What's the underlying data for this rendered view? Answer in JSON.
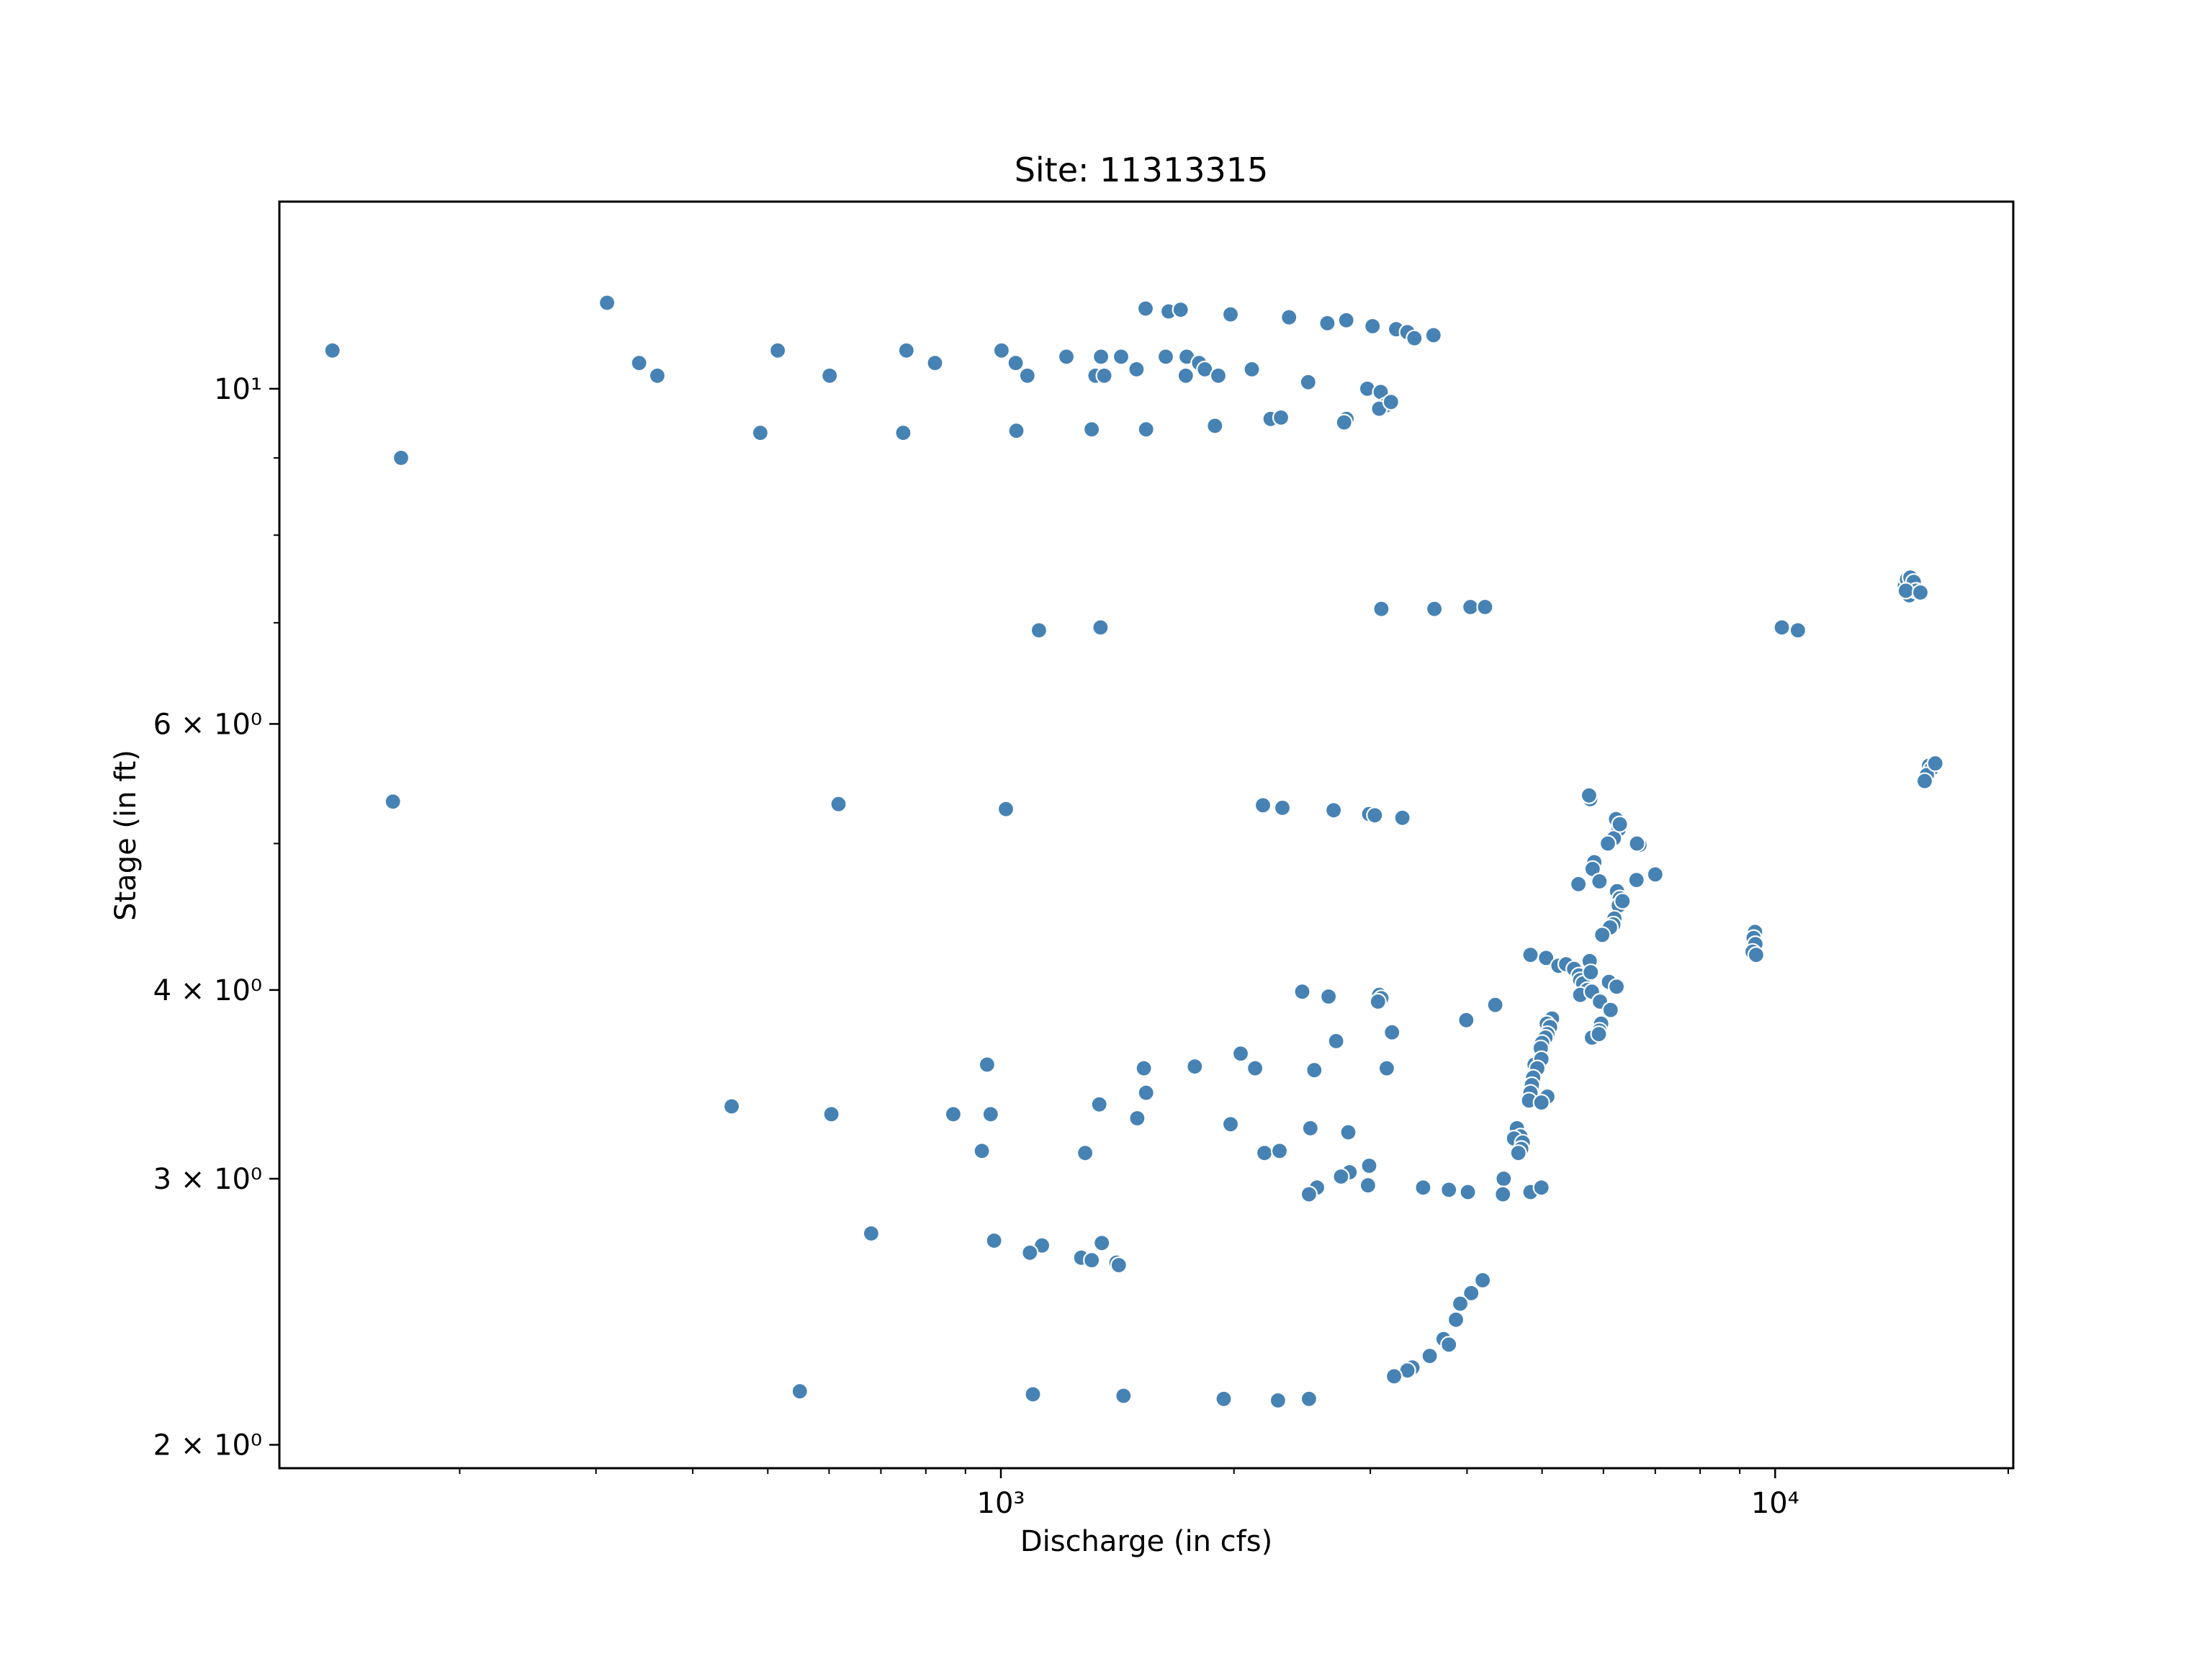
{
  "chart_data": {
    "type": "scatter",
    "title": "Site: 11313315",
    "xlabel": "Discharge (in cfs)",
    "ylabel": "Stage (in ft)",
    "xscale": "log",
    "yscale": "log",
    "xlim": [
      117,
      20300
    ],
    "ylim": [
      1.93,
      13.3
    ],
    "grid": false,
    "legend": "none",
    "colors": {
      "marker": "#4682b4",
      "marker_edge": "#ffffff",
      "axes": "#000000"
    },
    "x_ticks": [
      {
        "value": 1000,
        "label": "10³"
      },
      {
        "value": 10000,
        "label": "10⁴"
      }
    ],
    "y_ticks": [
      {
        "value": 2,
        "label": "2 × 10⁰"
      },
      {
        "value": 3,
        "label": "3 × 10⁰"
      },
      {
        "value": 4,
        "label": "4 × 10⁰"
      },
      {
        "value": 6,
        "label": "6 × 10⁰"
      },
      {
        "value": 10,
        "label": "10¹"
      }
    ],
    "points": [
      [
        137,
        10.6
      ],
      [
        310,
        11.4
      ],
      [
        341,
        10.4
      ],
      [
        360,
        10.2
      ],
      [
        515,
        10.6
      ],
      [
        601,
        10.2
      ],
      [
        755,
        10.6
      ],
      [
        822,
        10.4
      ],
      [
        1002,
        10.6
      ],
      [
        1045,
        10.4
      ],
      [
        1082,
        10.2
      ],
      [
        1215,
        10.5
      ],
      [
        1325,
        10.2
      ],
      [
        1347,
        10.5
      ],
      [
        1360,
        10.2
      ],
      [
        1430,
        10.5
      ],
      [
        1497,
        10.3
      ],
      [
        1633,
        10.5
      ],
      [
        1733,
        10.2
      ],
      [
        1738,
        10.5
      ],
      [
        1803,
        10.4
      ],
      [
        1834,
        10.3
      ],
      [
        1909,
        10.2
      ],
      [
        2109,
        10.3
      ],
      [
        2494,
        10.1
      ],
      [
        2973,
        10.0
      ],
      [
        3094,
        9.95
      ],
      [
        3141,
        9.75
      ],
      [
        3080,
        9.7
      ],
      [
        2795,
        9.55
      ],
      [
        2775,
        9.5
      ],
      [
        3190,
        9.8
      ],
      [
        1538,
        11.3
      ],
      [
        1647,
        11.25
      ],
      [
        1707,
        11.28
      ],
      [
        1980,
        11.2
      ],
      [
        2356,
        11.15
      ],
      [
        2640,
        11.05
      ],
      [
        2793,
        11.1
      ],
      [
        3020,
        11.0
      ],
      [
        3240,
        10.95
      ],
      [
        3350,
        10.9
      ],
      [
        3420,
        10.8
      ],
      [
        3620,
        10.85
      ],
      [
        168,
        9.0
      ],
      [
        489,
        9.35
      ],
      [
        748,
        9.35
      ],
      [
        1047,
        9.38
      ],
      [
        1310,
        9.4
      ],
      [
        1540,
        9.4
      ],
      [
        1890,
        9.45
      ],
      [
        2230,
        9.55
      ],
      [
        2300,
        9.57
      ],
      [
        1120,
        6.92
      ],
      [
        1345,
        6.95
      ],
      [
        3100,
        7.15
      ],
      [
        3630,
        7.15
      ],
      [
        4040,
        7.17
      ],
      [
        4220,
        7.17
      ],
      [
        10200,
        6.95
      ],
      [
        10700,
        6.92
      ],
      [
        14700,
        7.4
      ],
      [
        14800,
        7.48
      ],
      [
        14950,
        7.5
      ],
      [
        15100,
        7.45
      ],
      [
        14900,
        7.3
      ],
      [
        15200,
        7.35
      ],
      [
        14750,
        7.35
      ],
      [
        15400,
        7.33
      ],
      [
        164,
        5.33
      ],
      [
        617,
        5.31
      ],
      [
        1015,
        5.27
      ],
      [
        2180,
        5.3
      ],
      [
        2310,
        5.28
      ],
      [
        2690,
        5.26
      ],
      [
        2990,
        5.23
      ],
      [
        3040,
        5.22
      ],
      [
        3300,
        5.2
      ],
      [
        5770,
        5.35
      ],
      [
        5750,
        5.38
      ],
      [
        6230,
        5.19
      ],
      [
        6280,
        5.11
      ],
      [
        6190,
        5.04
      ],
      [
        6300,
        5.15
      ],
      [
        6080,
        5.0
      ],
      [
        6680,
        4.99
      ],
      [
        6630,
        5.0
      ],
      [
        5840,
        4.86
      ],
      [
        5810,
        4.81
      ],
      [
        5930,
        4.72
      ],
      [
        5570,
        4.7
      ],
      [
        7000,
        4.77
      ],
      [
        6620,
        4.73
      ],
      [
        6250,
        4.65
      ],
      [
        6300,
        4.6
      ],
      [
        6280,
        4.55
      ],
      [
        6350,
        4.58
      ],
      [
        6200,
        4.46
      ],
      [
        6180,
        4.42
      ],
      [
        6120,
        4.4
      ],
      [
        5980,
        4.35
      ],
      [
        15800,
        5.63
      ],
      [
        15900,
        5.6
      ],
      [
        15700,
        5.55
      ],
      [
        16100,
        5.65
      ],
      [
        15600,
        5.5
      ],
      [
        9390,
        4.31
      ],
      [
        9420,
        4.37
      ],
      [
        9380,
        4.33
      ],
      [
        9430,
        4.29
      ],
      [
        9350,
        4.24
      ],
      [
        9450,
        4.22
      ],
      [
        4830,
        4.22
      ],
      [
        5060,
        4.2
      ],
      [
        5250,
        4.15
      ],
      [
        5370,
        4.16
      ],
      [
        5500,
        4.13
      ],
      [
        5580,
        4.09
      ],
      [
        5600,
        4.06
      ],
      [
        5650,
        4.04
      ],
      [
        5760,
        4.18
      ],
      [
        5780,
        4.11
      ],
      [
        5720,
        4.0
      ],
      [
        5600,
        3.97
      ],
      [
        5800,
        3.99
      ],
      [
        6100,
        4.05
      ],
      [
        6240,
        4.02
      ],
      [
        5940,
        3.93
      ],
      [
        6130,
        3.88
      ],
      [
        5960,
        3.8
      ],
      [
        5930,
        3.76
      ],
      [
        5800,
        3.72
      ],
      [
        5920,
        3.74
      ],
      [
        2450,
        3.99
      ],
      [
        2650,
        3.96
      ],
      [
        3080,
        3.97
      ],
      [
        3100,
        3.95
      ],
      [
        3070,
        3.93
      ],
      [
        4350,
        3.91
      ],
      [
        3990,
        3.82
      ],
      [
        5150,
        3.83
      ],
      [
        5070,
        3.8
      ],
      [
        5120,
        3.78
      ],
      [
        5080,
        3.74
      ],
      [
        5050,
        3.72
      ],
      [
        5000,
        3.69
      ],
      [
        4980,
        3.66
      ],
      [
        3200,
        3.75
      ],
      [
        2710,
        3.7
      ],
      [
        2040,
        3.63
      ],
      [
        1780,
        3.56
      ],
      [
        2130,
        3.55
      ],
      [
        960,
        3.57
      ],
      [
        1530,
        3.55
      ],
      [
        2540,
        3.54
      ],
      [
        3150,
        3.55
      ],
      [
        4890,
        3.57
      ],
      [
        4990,
        3.6
      ],
      [
        4930,
        3.55
      ],
      [
        4870,
        3.5
      ],
      [
        4850,
        3.46
      ],
      [
        4830,
        3.42
      ],
      [
        4810,
        3.38
      ],
      [
        5080,
        3.4
      ],
      [
        4990,
        3.37
      ],
      [
        1540,
        3.42
      ],
      [
        1340,
        3.36
      ],
      [
        449,
        3.35
      ],
      [
        604,
        3.31
      ],
      [
        868,
        3.31
      ],
      [
        970,
        3.31
      ],
      [
        1500,
        3.29
      ],
      [
        1980,
        3.26
      ],
      [
        2510,
        3.24
      ],
      [
        2810,
        3.22
      ],
      [
        4620,
        3.22
      ],
      [
        4640,
        3.24
      ],
      [
        4690,
        3.2
      ],
      [
        4600,
        3.19
      ],
      [
        4720,
        3.17
      ],
      [
        4700,
        3.14
      ],
      [
        4660,
        3.12
      ],
      [
        945,
        3.13
      ],
      [
        1285,
        3.12
      ],
      [
        2190,
        3.12
      ],
      [
        2290,
        3.13
      ],
      [
        2990,
        3.06
      ],
      [
        2820,
        3.03
      ],
      [
        2750,
        3.01
      ],
      [
        2980,
        2.97
      ],
      [
        4460,
        3.0
      ],
      [
        2560,
        2.96
      ],
      [
        2500,
        2.93
      ],
      [
        3510,
        2.96
      ],
      [
        3790,
        2.95
      ],
      [
        4010,
        2.94
      ],
      [
        4450,
        2.93
      ],
      [
        4830,
        2.94
      ],
      [
        4990,
        2.96
      ],
      [
        680,
        2.76
      ],
      [
        980,
        2.73
      ],
      [
        1130,
        2.71
      ],
      [
        1090,
        2.68
      ],
      [
        1270,
        2.66
      ],
      [
        1310,
        2.65
      ],
      [
        1350,
        2.72
      ],
      [
        1410,
        2.64
      ],
      [
        1420,
        2.63
      ],
      [
        4190,
        2.57
      ],
      [
        4050,
        2.52
      ],
      [
        3920,
        2.48
      ],
      [
        3870,
        2.42
      ],
      [
        3730,
        2.35
      ],
      [
        3790,
        2.33
      ],
      [
        3580,
        2.29
      ],
      [
        3400,
        2.25
      ],
      [
        3350,
        2.24
      ],
      [
        3220,
        2.22
      ],
      [
        550,
        2.17
      ],
      [
        1100,
        2.16
      ],
      [
        1440,
        2.155
      ],
      [
        1940,
        2.145
      ],
      [
        2280,
        2.14
      ],
      [
        2500,
        2.145
      ]
    ]
  }
}
